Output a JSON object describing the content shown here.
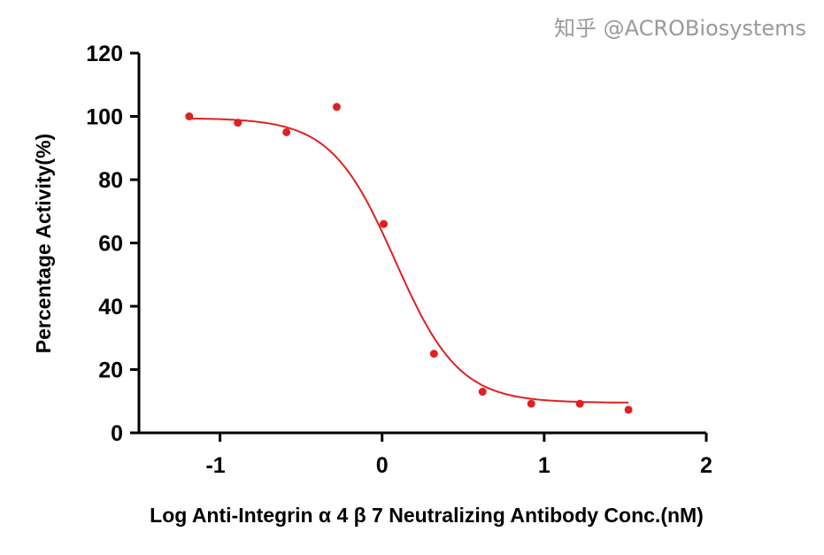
{
  "chart_data": {
    "type": "scatter",
    "xlabel": "Log Anti-Integrin α 4 β 7 Neutralizing Antibody Conc.(nM)",
    "ylabel": "Percentage Activity(%)",
    "xlim": [
      -1.5,
      2
    ],
    "ylim": [
      0,
      120
    ],
    "xticks": [
      "-1",
      "0",
      "1",
      "2"
    ],
    "yticks": [
      "0",
      "20",
      "40",
      "60",
      "80",
      "100",
      "120"
    ],
    "grid": false,
    "color": "#e02020",
    "points": {
      "x": [
        -1.19,
        -0.89,
        -0.59,
        -0.28,
        0.01,
        0.32,
        0.62,
        0.92,
        1.22,
        1.52
      ],
      "y": [
        100,
        98,
        95,
        103,
        66,
        25,
        13,
        9.2,
        9.2,
        7.3
      ]
    },
    "fit": {
      "type": "4PL",
      "top": 99.5,
      "bottom": 9.5,
      "logIC50": 0.08,
      "hill": -2.2,
      "x_range": [
        -1.19,
        1.52
      ]
    }
  },
  "watermark": "知乎 @ACROBiosystems"
}
